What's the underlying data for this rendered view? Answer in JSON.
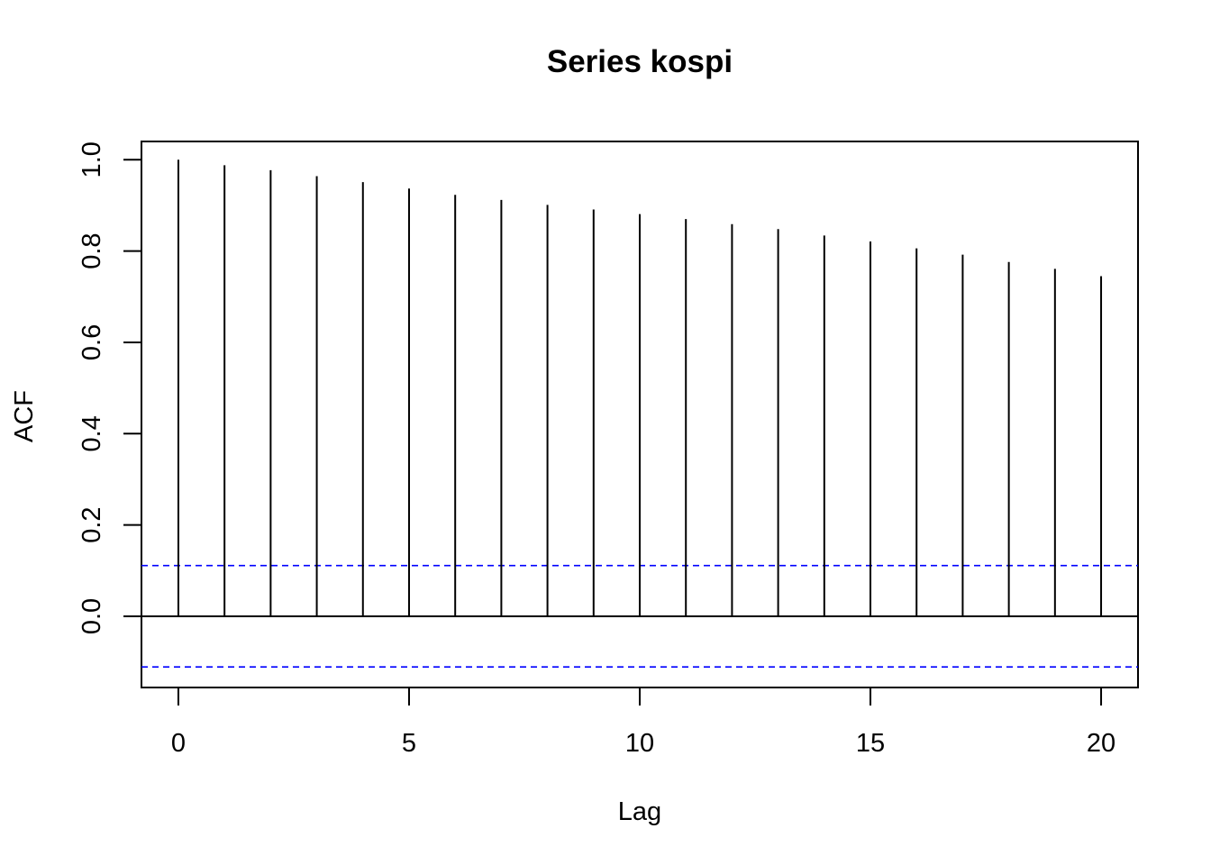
{
  "chart_data": {
    "type": "bar",
    "title": "Series  kospi",
    "xlabel": "Lag",
    "ylabel": "ACF",
    "x": [
      0,
      1,
      2,
      3,
      4,
      5,
      6,
      7,
      8,
      9,
      10,
      11,
      12,
      13,
      14,
      15,
      16,
      17,
      18,
      19,
      20
    ],
    "values": [
      1.0,
      0.988,
      0.977,
      0.964,
      0.951,
      0.937,
      0.923,
      0.912,
      0.901,
      0.891,
      0.881,
      0.87,
      0.859,
      0.848,
      0.834,
      0.821,
      0.806,
      0.792,
      0.776,
      0.761,
      0.745
    ],
    "xlim": [
      -0.8,
      20.8
    ],
    "ylim": [
      -0.156,
      1.04
    ],
    "x_ticks": [
      0,
      5,
      10,
      15,
      20
    ],
    "y_ticks": [
      0.0,
      0.2,
      0.4,
      0.6,
      0.8,
      1.0
    ],
    "x_tick_labels": [
      "0",
      "5",
      "10",
      "15",
      "20"
    ],
    "y_tick_labels": [
      "0.0",
      "0.2",
      "0.4",
      "0.6",
      "0.8",
      "1.0"
    ],
    "confidence_bounds": [
      0.111,
      -0.111
    ],
    "zero_line": 0.0,
    "grid": false,
    "colors": {
      "bars": "#000000",
      "confidence": "#0000ff",
      "axes": "#000000"
    }
  }
}
